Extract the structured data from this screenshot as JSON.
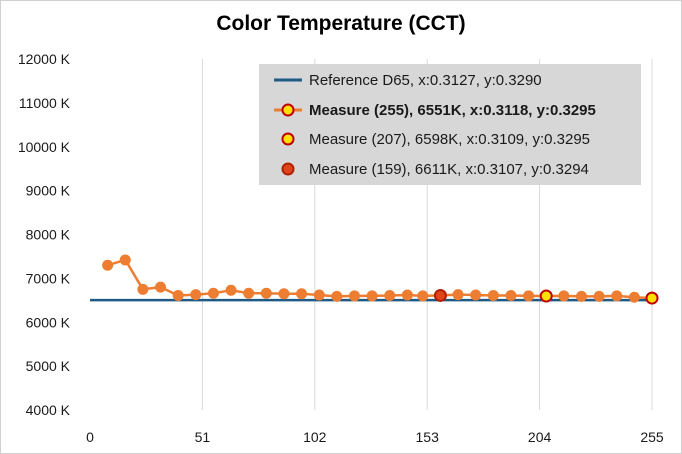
{
  "colors": {
    "reference": "#1f5a84",
    "measure_line": "#ed7d31",
    "measure_marker_fill": "#ed7d31",
    "highlight_255_fill": "#ffe100",
    "highlight_255_stroke": "#c00000",
    "highlight_207_fill": "#ffe100",
    "highlight_207_stroke": "#c00000",
    "highlight_159_fill": "#e0441a",
    "highlight_159_stroke": "#b02000",
    "legend_background": "#d7d7d7",
    "gridline": "#d9d9d9"
  },
  "chart_data": {
    "type": "line",
    "title": "Color Temperature (CCT)",
    "xlabel": "",
    "ylabel": "",
    "xlim": [
      0,
      255
    ],
    "ylim": [
      4000,
      12000
    ],
    "x_ticks": [
      0,
      51,
      102,
      153,
      204,
      255
    ],
    "y_ticks": [
      4000,
      5000,
      6000,
      7000,
      8000,
      9000,
      10000,
      11000,
      12000
    ],
    "y_tick_suffix": " K",
    "grid": "vertical",
    "legend_position": "top-right",
    "legend": [
      "Reference D65, x:0.3127, y:0.3290",
      "Measure (255), 6551K, x:0.3118, y:0.3295",
      "Measure (207), 6598K, x:0.3109, y:0.3295",
      "Measure (159), 6611K, x:0.3107, y:0.3294"
    ],
    "series": [
      {
        "name": "Reference D65, x:0.3127, y:0.3290",
        "type": "line",
        "x": [
          0,
          255
        ],
        "y": [
          6504,
          6504
        ]
      },
      {
        "name": "Measure (255), 6551K, x:0.3118, y:0.3295",
        "type": "line-markers",
        "x": [
          8,
          16,
          24,
          32,
          40,
          48,
          56,
          64,
          72,
          80,
          88,
          96,
          104,
          112,
          120,
          128,
          136,
          144,
          151,
          159,
          167,
          175,
          183,
          191,
          199,
          207,
          215,
          223,
          231,
          239,
          247,
          255
        ],
        "y": [
          7300,
          7420,
          6750,
          6800,
          6610,
          6630,
          6660,
          6730,
          6660,
          6660,
          6650,
          6650,
          6620,
          6590,
          6600,
          6600,
          6610,
          6620,
          6600,
          6611,
          6630,
          6620,
          6610,
          6610,
          6600,
          6598,
          6600,
          6590,
          6590,
          6600,
          6570,
          6551
        ]
      },
      {
        "name": "Measure (207), 6598K, x:0.3109, y:0.3295",
        "type": "highlight-point",
        "x": [
          207
        ],
        "y": [
          6598
        ]
      },
      {
        "name": "Measure (159), 6611K, x:0.3107, y:0.3294",
        "type": "highlight-point",
        "x": [
          159
        ],
        "y": [
          6611
        ]
      }
    ]
  }
}
